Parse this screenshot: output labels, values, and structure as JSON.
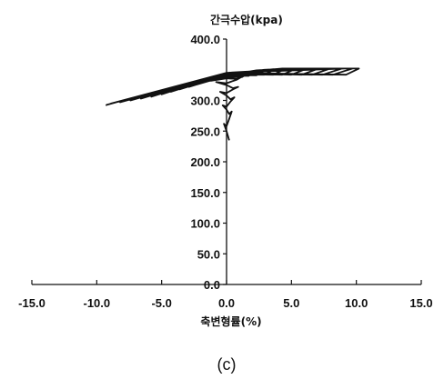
{
  "chart_data": {
    "type": "line",
    "panel_label": "(c)",
    "xlabel": "축변형률(%)",
    "ylabel": "간극수압(kpa)",
    "xlim": [
      -15.0,
      15.0
    ],
    "ylim": [
      0.0,
      400.0
    ],
    "x_ticks": [
      "-15.0",
      "-10.0",
      "-5.0",
      "0.0",
      "5.0",
      "10.0",
      "15.0"
    ],
    "y_ticks": [
      "0.0",
      "50.0",
      "100.0",
      "150.0",
      "200.0",
      "250.0",
      "300.0",
      "400.0"
    ],
    "grid": false,
    "line_color": "#111111",
    "series": [
      {
        "values_x": [
          0.2,
          0.0,
          -0.2,
          0.0,
          0.2,
          0.4,
          0.2,
          0.0,
          -0.3,
          0.0,
          0.3,
          0.6,
          0.3,
          0.0,
          -0.5,
          0.0,
          0.5,
          0.9,
          0.5,
          0.0,
          -0.8,
          0.0,
          0.8,
          1.3,
          0.8,
          0.0,
          -1.2,
          0.0,
          1.2,
          1.8,
          1.2,
          0.0,
          -1.7,
          0.0,
          1.7,
          2.4,
          1.7,
          0.0,
          -2.3,
          0.0,
          2.3,
          3.1,
          2.3,
          0.0,
          -2.9,
          0.0,
          2.9,
          3.8,
          2.9,
          0.0,
          -3.6,
          0.0,
          3.6,
          4.6,
          3.6,
          0.0,
          -4.3,
          0.0,
          4.3,
          5.4,
          4.3,
          0.0,
          -5.0,
          0.0,
          5.0,
          6.2,
          5.0,
          0.0,
          -5.8,
          0.0,
          5.8,
          7.1,
          5.8,
          0.0,
          -6.6,
          0.0,
          6.6,
          8.0,
          6.6,
          0.0,
          -7.4,
          0.0,
          7.4,
          8.9,
          7.4,
          0.0,
          -8.2,
          0.0,
          8.2,
          9.7,
          8.2,
          0.0,
          -8.9,
          0.0,
          9.2,
          10.2,
          9.2,
          0.0,
          -9.2,
          -9.3
        ],
        "values_y": [
          235.0,
          250.0,
          262.0,
          258.0,
          270.0,
          282.0,
          278.0,
          285.0,
          292.0,
          290.0,
          298.0,
          305.0,
          302.0,
          308.0,
          314.0,
          312.0,
          318.0,
          322.0,
          320.0,
          325.0,
          330.0,
          328.0,
          334.0,
          340.0,
          335.0,
          336.0,
          332.0,
          337.0,
          342.0,
          346.0,
          338.0,
          338.0,
          330.0,
          339.0,
          346.0,
          349.0,
          340.0,
          340.0,
          326.0,
          341.0,
          349.0,
          350.0,
          341.0,
          341.0,
          322.0,
          342.0,
          350.0,
          351.0,
          342.0,
          342.0,
          318.0,
          343.0,
          351.0,
          352.0,
          342.0,
          343.0,
          314.0,
          344.0,
          352.0,
          352.0,
          342.0,
          344.0,
          310.0,
          344.0,
          352.0,
          352.0,
          342.0,
          345.0,
          306.0,
          345.0,
          352.0,
          352.0,
          342.0,
          345.0,
          303.0,
          345.0,
          352.0,
          352.0,
          342.0,
          345.0,
          300.0,
          345.0,
          352.0,
          352.0,
          342.0,
          345.0,
          297.0,
          345.0,
          352.0,
          352.0,
          342.0,
          345.0,
          295.0,
          345.0,
          352.0,
          352.0,
          342.0,
          345.0,
          293.0,
          292.0
        ]
      }
    ]
  }
}
